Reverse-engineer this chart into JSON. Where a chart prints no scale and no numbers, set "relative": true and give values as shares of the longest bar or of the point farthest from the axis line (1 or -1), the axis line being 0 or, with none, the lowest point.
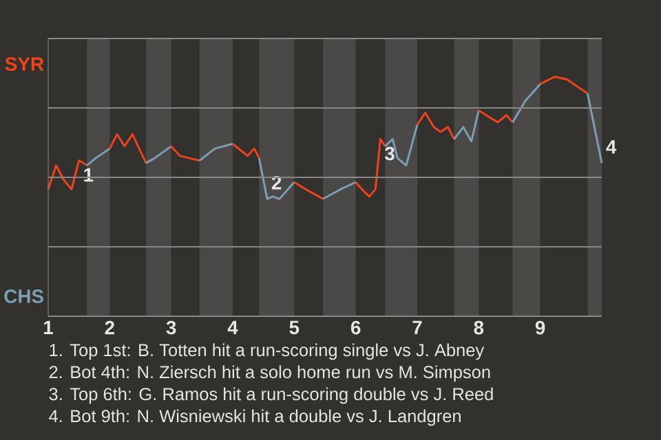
{
  "chart_data": {
    "type": "line",
    "relative": true,
    "series": [
      {
        "name": "SYR",
        "color": "#f2421b",
        "x": [
          1,
          1.13,
          1.25,
          1.38,
          1.5,
          1.63
        ],
        "values": [
          0.53,
          0.63,
          0.57,
          0.53,
          0.65,
          0.63
        ]
      },
      {
        "name": "CHS",
        "color": "#7d9fb3",
        "x": [
          1.63,
          1.77,
          2
        ],
        "values": [
          0.63,
          0.66,
          0.7
        ]
      },
      {
        "color": "#f2421b",
        "x": [
          2,
          2.12,
          2.24,
          2.37,
          2.59
        ],
        "values": [
          0.7,
          0.76,
          0.71,
          0.76,
          0.64
        ]
      },
      {
        "color": "#7d9fb3",
        "x": [
          2.59,
          2.73,
          3
        ],
        "values": [
          0.64,
          0.66,
          0.71
        ]
      },
      {
        "color": "#f2421b",
        "x": [
          3,
          3.14,
          3.46
        ],
        "values": [
          0.71,
          0.67,
          0.65
        ]
      },
      {
        "color": "#7d9fb3",
        "x": [
          3.46,
          3.71,
          4
        ],
        "values": [
          0.65,
          0.7,
          0.72
        ]
      },
      {
        "color": "#f2421b",
        "x": [
          4,
          4.24,
          4.35,
          4.43
        ],
        "values": [
          0.72,
          0.67,
          0.7,
          0.66
        ]
      },
      {
        "color": "#7d9fb3",
        "x": [
          4.43,
          4.56,
          4.65,
          4.76,
          5
        ],
        "values": [
          0.66,
          0.49,
          0.5,
          0.49,
          0.56
        ]
      },
      {
        "color": "#f2421b",
        "x": [
          5,
          5.19,
          5.47
        ],
        "values": [
          0.56,
          0.53,
          0.49
        ]
      },
      {
        "color": "#7d9fb3",
        "x": [
          5.47,
          5.75,
          6
        ],
        "values": [
          0.49,
          0.53,
          0.56
        ]
      },
      {
        "color": "#f2421b",
        "x": [
          6,
          6.1,
          6.22,
          6.32,
          6.4,
          6.48
        ],
        "values": [
          0.56,
          0.53,
          0.5,
          0.53,
          0.74,
          0.71
        ]
      },
      {
        "color": "#7d9fb3",
        "x": [
          6.48,
          6.6,
          6.68,
          6.82,
          7
        ],
        "values": [
          0.71,
          0.74,
          0.66,
          0.63,
          0.8
        ]
      },
      {
        "color": "#f2421b",
        "x": [
          7,
          7.13,
          7.27,
          7.38,
          7.5,
          7.6
        ],
        "values": [
          0.8,
          0.85,
          0.79,
          0.77,
          0.79,
          0.74
        ]
      },
      {
        "color": "#7d9fb3",
        "x": [
          7.6,
          7.75,
          7.88,
          8
        ],
        "values": [
          0.74,
          0.79,
          0.73,
          0.86
        ]
      },
      {
        "color": "#f2421b",
        "x": [
          8,
          8.12,
          8.31,
          8.45,
          8.55
        ],
        "values": [
          0.86,
          0.84,
          0.81,
          0.84,
          0.81
        ]
      },
      {
        "color": "#7d9fb3",
        "x": [
          8.55,
          8.76,
          9
        ],
        "values": [
          0.81,
          0.9,
          0.97
        ]
      },
      {
        "color": "#f2421b",
        "x": [
          9,
          9.23,
          9.43,
          9.77
        ],
        "values": [
          0.97,
          1,
          0.99,
          0.93
        ]
      },
      {
        "color": "#7d9fb3",
        "x": [
          9.77,
          10
        ],
        "values": [
          0.93,
          0.64
        ]
      }
    ],
    "xlim": [
      1,
      10
    ],
    "xticks": [
      1,
      2,
      3,
      4,
      5,
      6,
      7,
      8,
      9
    ],
    "grid": "y",
    "bands": [
      {
        "axis": "x",
        "from": 1.63,
        "to": 2,
        "color": "#4b4947"
      },
      {
        "axis": "x",
        "from": 2.59,
        "to": 3,
        "color": "#4b4947"
      },
      {
        "axis": "x",
        "from": 3.46,
        "to": 4,
        "color": "#4b4947"
      },
      {
        "axis": "x",
        "from": 4.43,
        "to": 5,
        "color": "#4b4947"
      },
      {
        "axis": "x",
        "from": 5.47,
        "to": 6,
        "color": "#4b4947"
      },
      {
        "axis": "x",
        "from": 6.48,
        "to": 7,
        "color": "#4b4947"
      },
      {
        "axis": "x",
        "from": 7.6,
        "to": 8,
        "color": "#4b4947"
      },
      {
        "axis": "x",
        "from": 8.55,
        "to": 9,
        "color": "#4b4947"
      },
      {
        "axis": "x",
        "from": 9.77,
        "to": 10,
        "color": "#4b4947"
      }
    ],
    "annotations": [
      {
        "text": "1",
        "x": 1.5,
        "y": 0.65
      },
      {
        "text": "2",
        "x": 4.56,
        "y": 0.49
      },
      {
        "text": "3",
        "x": 6.4,
        "y": 0.74
      },
      {
        "text": "4",
        "x": 10,
        "y": 0.64
      },
      "1. Top 1st: B. Totten hit a run-scoring single vs J. Abney",
      "2. Bot 4th: N. Ziersch hit a solo home run vs M. Simpson",
      "3. Top 6th: G. Ramos hit a run-scoring double vs J. Reed",
      "4. Bot 9th: N. Wisniewski hit a double vs J. Landgren"
    ]
  }
}
